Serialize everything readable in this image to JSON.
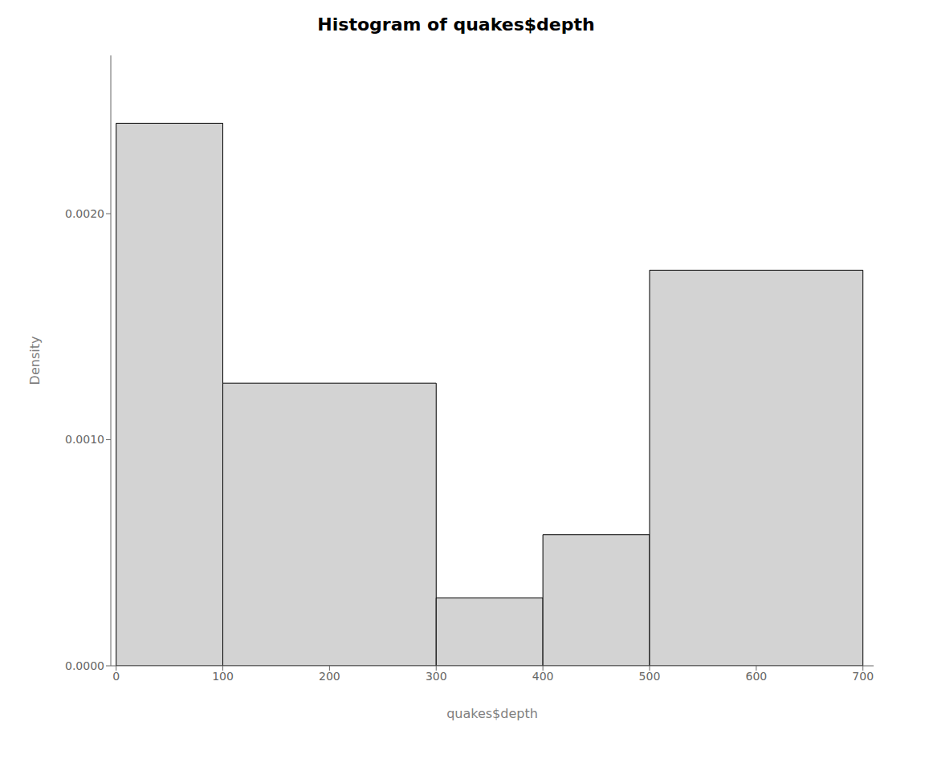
{
  "chart_data": {
    "type": "histogram",
    "title": "Histogram of quakes$depth",
    "xlabel": "quakes$depth",
    "ylabel": "Density",
    "bins": [
      0,
      100,
      300,
      400,
      500,
      700
    ],
    "values": [
      0.0024,
      0.00125,
      0.0003,
      0.00058,
      0.00175
    ],
    "color": "#d3d3d3",
    "xlim": [
      -5,
      710
    ],
    "ylim": [
      0,
      0.0027
    ],
    "xticks": [
      0,
      100,
      200,
      300,
      400,
      500,
      600,
      700
    ],
    "yticks": [
      {
        "value": 0,
        "label": "0.0000"
      },
      {
        "value": 0.001,
        "label": "0.0010"
      },
      {
        "value": 0.002,
        "label": "0.0020"
      }
    ],
    "grid": false
  }
}
